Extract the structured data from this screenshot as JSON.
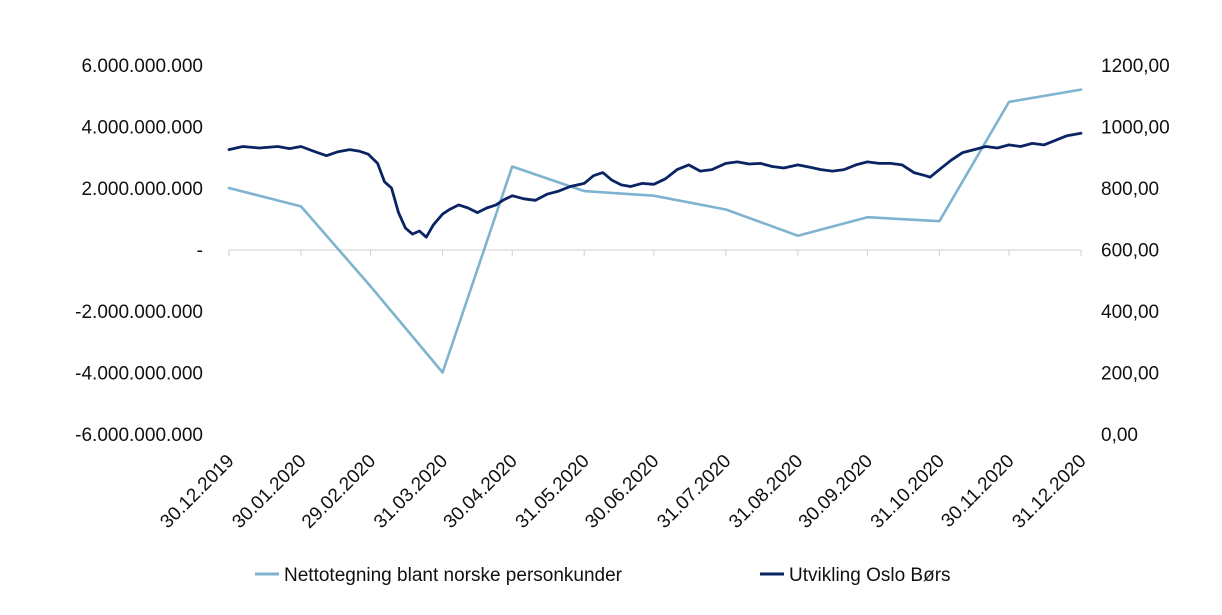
{
  "chart_data": {
    "type": "line",
    "title": "",
    "xlabel": "",
    "ylabel_left": "",
    "ylabel_right": "",
    "categories": [
      "30.12.2019",
      "30.01.2020",
      "29.02.2020",
      "31.03.2020",
      "30.04.2020",
      "31.05.2020",
      "30.06.2020",
      "31.07.2020",
      "31.08.2020",
      "30.09.2020",
      "31.10.2020",
      "30.11.2020",
      "31.12.2020"
    ],
    "y_left": {
      "range": [
        -6000000000,
        6000000000
      ],
      "ticks": [
        {
          "value": 6000000000,
          "label": "6.000.000.000"
        },
        {
          "value": 4000000000,
          "label": "4.000.000.000"
        },
        {
          "value": 2000000000,
          "label": "2.000.000.000"
        },
        {
          "value": 0,
          "label": "-"
        },
        {
          "value": -2000000000,
          "label": "-2.000.000.000"
        },
        {
          "value": -4000000000,
          "label": "-4.000.000.000"
        },
        {
          "value": -6000000000,
          "label": "-6.000.000.000"
        }
      ]
    },
    "y_right": {
      "range": [
        0,
        1200
      ],
      "ticks": [
        {
          "value": 1200,
          "label": "1200,00"
        },
        {
          "value": 1000,
          "label": "1000,00"
        },
        {
          "value": 800,
          "label": "800,00"
        },
        {
          "value": 600,
          "label": "600,00"
        },
        {
          "value": 400,
          "label": "400,00"
        },
        {
          "value": 200,
          "label": "200,00"
        },
        {
          "value": 0,
          "label": "0,00"
        }
      ]
    },
    "grid": false,
    "legend_position": "bottom",
    "series": [
      {
        "name": "Nettotegning blant norske personkunder",
        "axis": "left",
        "color": "#7fb3cf",
        "x": [
          "30.12.2019",
          "30.01.2020",
          "29.02.2020",
          "31.03.2020",
          "30.04.2020",
          "31.05.2020",
          "30.06.2020",
          "31.07.2020",
          "31.08.2020",
          "30.09.2020",
          "31.10.2020",
          "30.11.2020",
          "31.12.2020"
        ],
        "values": [
          2000000000,
          1400000000,
          -1200000000,
          -4000000000,
          2700000000,
          1900000000,
          1750000000,
          1300000000,
          450000000,
          1050000000,
          920000000,
          4800000000,
          5200000000
        ]
      },
      {
        "name": "Utvikling Oslo Børs",
        "axis": "right",
        "color": "#0a2463",
        "x": [
          "2019-12-30",
          "2020-01-05",
          "2020-01-12",
          "2020-01-20",
          "2020-01-25",
          "2020-01-30",
          "2020-02-05",
          "2020-02-10",
          "2020-02-15",
          "2020-02-20",
          "2020-02-24",
          "2020-02-28",
          "2020-03-03",
          "2020-03-06",
          "2020-03-09",
          "2020-03-12",
          "2020-03-15",
          "2020-03-18",
          "2020-03-21",
          "2020-03-24",
          "2020-03-27",
          "2020-03-31",
          "2020-04-03",
          "2020-04-07",
          "2020-04-11",
          "2020-04-15",
          "2020-04-19",
          "2020-04-23",
          "2020-04-26",
          "2020-04-30",
          "2020-05-05",
          "2020-05-10",
          "2020-05-15",
          "2020-05-20",
          "2020-05-25",
          "2020-05-31",
          "2020-06-04",
          "2020-06-08",
          "2020-06-12",
          "2020-06-16",
          "2020-06-20",
          "2020-06-25",
          "2020-06-30",
          "2020-07-05",
          "2020-07-10",
          "2020-07-15",
          "2020-07-20",
          "2020-07-25",
          "2020-07-31",
          "2020-08-05",
          "2020-08-10",
          "2020-08-15",
          "2020-08-20",
          "2020-08-25",
          "2020-08-31",
          "2020-09-05",
          "2020-09-10",
          "2020-09-15",
          "2020-09-20",
          "2020-09-25",
          "2020-09-30",
          "2020-10-05",
          "2020-10-10",
          "2020-10-15",
          "2020-10-20",
          "2020-10-25",
          "2020-10-27",
          "2020-10-31",
          "2020-11-05",
          "2020-11-10",
          "2020-11-15",
          "2020-11-20",
          "2020-11-25",
          "2020-11-30",
          "2020-12-05",
          "2020-12-10",
          "2020-12-15",
          "2020-12-20",
          "2020-12-25",
          "2020-12-31"
        ],
        "values": [
          925,
          935,
          930,
          935,
          928,
          935,
          918,
          905,
          918,
          925,
          920,
          910,
          880,
          820,
          800,
          720,
          670,
          650,
          660,
          640,
          680,
          715,
          730,
          745,
          735,
          720,
          735,
          745,
          760,
          775,
          765,
          760,
          780,
          790,
          805,
          815,
          840,
          850,
          825,
          810,
          805,
          815,
          812,
          830,
          860,
          875,
          855,
          860,
          880,
          885,
          878,
          880,
          870,
          865,
          875,
          868,
          860,
          855,
          860,
          875,
          885,
          880,
          880,
          875,
          850,
          840,
          835,
          860,
          890,
          915,
          925,
          935,
          930,
          940,
          935,
          945,
          940,
          955,
          970,
          978
        ]
      }
    ]
  }
}
